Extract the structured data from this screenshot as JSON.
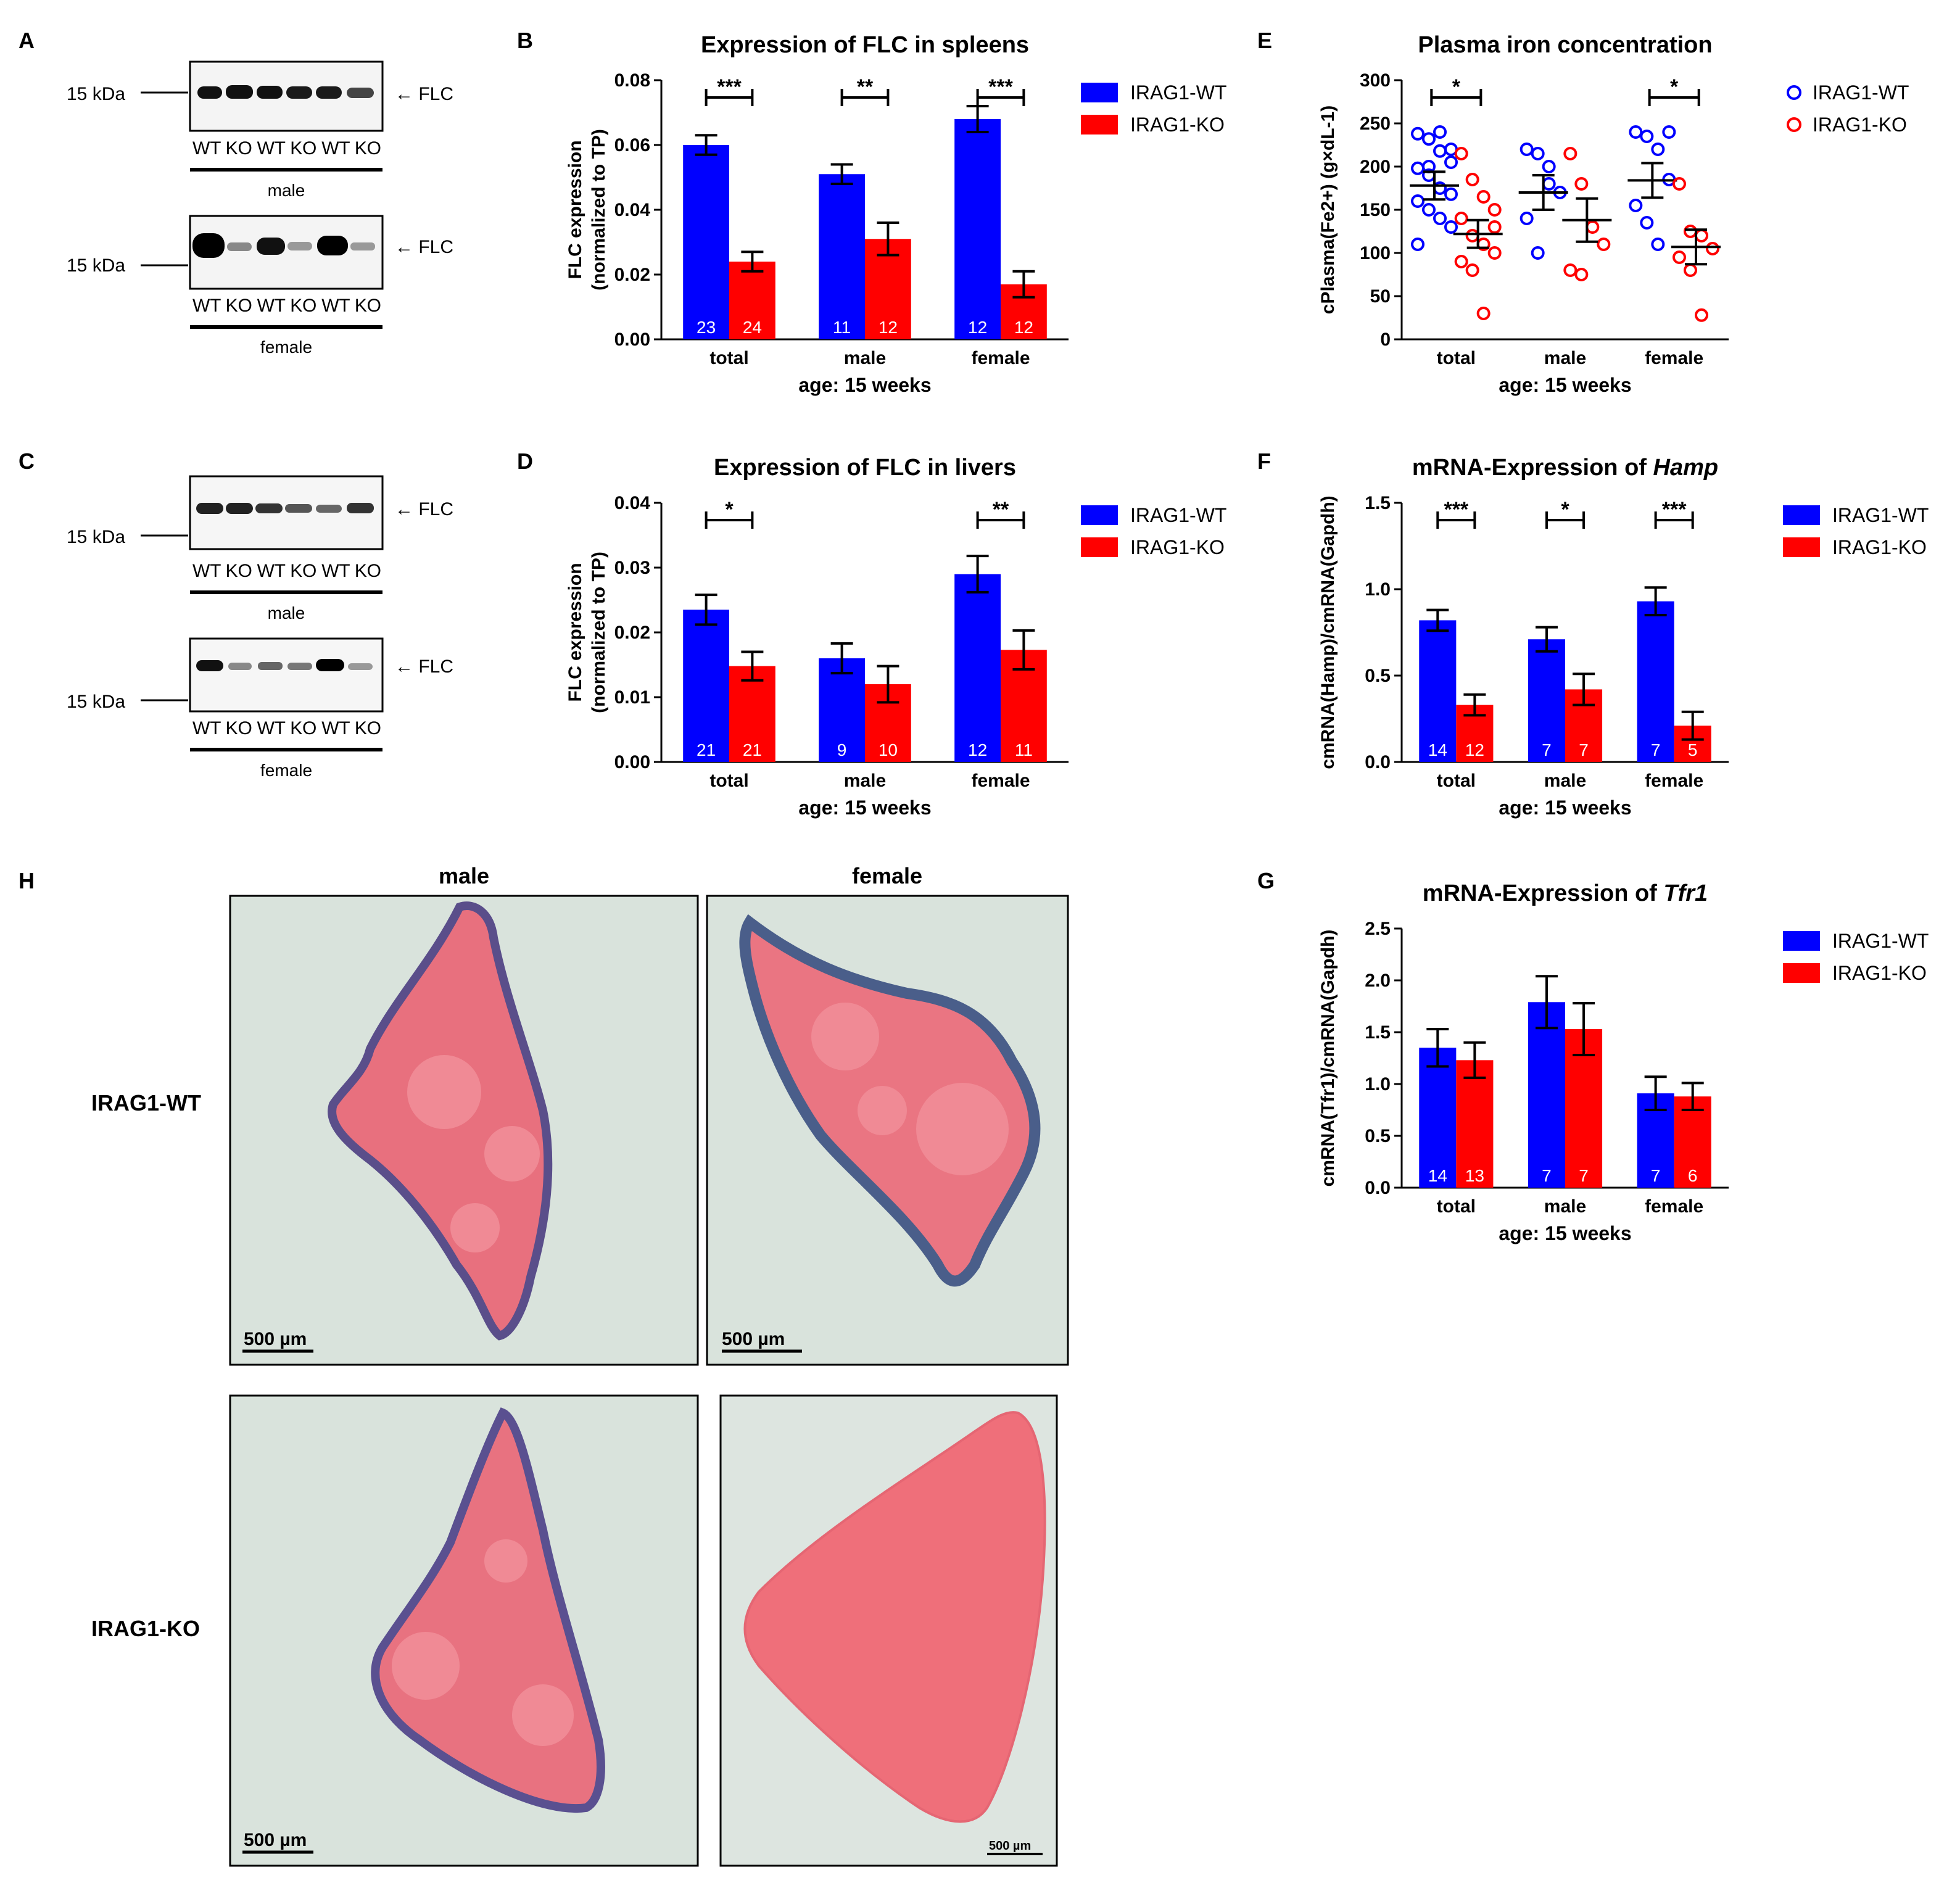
{
  "panel_letters": {
    "A": "A",
    "B": "B",
    "C": "C",
    "D": "D",
    "E": "E",
    "F": "F",
    "G": "G",
    "H": "H"
  },
  "colors": {
    "wt": "#0000ff",
    "ko": "#ff0000"
  },
  "blots": {
    "kda": "15 kDa",
    "band": "FLC",
    "lanes_a_male": "WT KO WT KO WT KO",
    "lanes_a_female": "WT KO WT KO WT KO",
    "lanes_c_male": "WT KO WT KO WT KO",
    "lanes_c_female": "WT KO WT KO WT KO",
    "male": "male",
    "female": "female"
  },
  "legend": {
    "wt": "IRAG1-WT",
    "ko": "IRAG1-KO"
  },
  "histology": {
    "col_male": "male",
    "col_female": "female",
    "row_wt": "IRAG1-WT",
    "row_ko": "IRAG1-KO",
    "scale": "500 µm"
  },
  "chart_data": [
    {
      "id": "B",
      "type": "bar",
      "title": "Expression of FLC in spleens",
      "ylabel_lines": [
        "FLC expression",
        "(normalized to TP)"
      ],
      "xlabel": "age:  15 weeks",
      "categories": [
        "total",
        "male",
        "female"
      ],
      "ylim": [
        0,
        0.08
      ],
      "yticks": [
        "0.00",
        "0.02",
        "0.04",
        "0.06",
        "0.08"
      ],
      "series": [
        {
          "name": "IRAG1-WT",
          "values": [
            0.06,
            0.051,
            0.068
          ],
          "errors": [
            0.003,
            0.003,
            0.004
          ],
          "n": [
            "23",
            "11",
            "12"
          ]
        },
        {
          "name": "IRAG1-KO",
          "values": [
            0.024,
            0.031,
            0.017
          ],
          "errors": [
            0.003,
            0.005,
            0.004
          ],
          "n": [
            "24",
            "12",
            "12"
          ]
        }
      ],
      "significance": [
        "***",
        "**",
        "***"
      ]
    },
    {
      "id": "D",
      "type": "bar",
      "title": "Expression of FLC in livers",
      "ylabel_lines": [
        "FLC expression",
        "(normalized to TP)"
      ],
      "xlabel": "age:  15 weeks",
      "categories": [
        "total",
        "male",
        "female"
      ],
      "ylim": [
        0,
        0.04
      ],
      "yticks": [
        "0.00",
        "0.01",
        "0.02",
        "0.03",
        "0.04"
      ],
      "series": [
        {
          "name": "IRAG1-WT",
          "values": [
            0.0235,
            0.016,
            0.029
          ],
          "errors": [
            0.0023,
            0.0023,
            0.0028
          ],
          "n": [
            "21",
            "9",
            "12"
          ]
        },
        {
          "name": "IRAG1-KO",
          "values": [
            0.0148,
            0.012,
            0.0173
          ],
          "errors": [
            0.0022,
            0.0028,
            0.003
          ],
          "n": [
            "21",
            "10",
            "11"
          ]
        }
      ],
      "significance": [
        "*",
        "",
        "**"
      ]
    },
    {
      "id": "E",
      "type": "scatter",
      "title": "Plasma iron concentration",
      "ylabel": "cPlasma(Fe2+) (g×dL-1)",
      "xlabel": "age:  15 weeks",
      "categories": [
        "total",
        "male",
        "female"
      ],
      "ylim": [
        0,
        300
      ],
      "yticks": [
        "0",
        "50",
        "100",
        "150",
        "200",
        "250",
        "300"
      ],
      "series": [
        {
          "name": "IRAG1-WT",
          "points": [
            [
              238,
              232,
              218,
              205,
              198,
              190,
              175,
              168,
              160,
              150,
              140,
              130,
              110,
              200,
              240,
              220
            ],
            [
              220,
              215,
              180,
              170,
              140,
              100,
              200
            ],
            [
              240,
              235,
              220,
              185,
              155,
              135,
              110,
              240
            ]
          ],
          "means": [
            178,
            170,
            184
          ],
          "errors": [
            16,
            20,
            20
          ]
        },
        {
          "name": "IRAG1-KO",
          "points": [
            [
              215,
              185,
              165,
              150,
              140,
              120,
              110,
              100,
              90,
              80,
              30,
              130
            ],
            [
              215,
              180,
              130,
              110,
              80,
              75
            ],
            [
              180,
              125,
              120,
              105,
              95,
              80,
              28
            ]
          ],
          "means": [
            122,
            138,
            107
          ],
          "errors": [
            16,
            25,
            20
          ]
        }
      ],
      "significance": [
        "*",
        "",
        "*"
      ]
    },
    {
      "id": "F",
      "type": "bar",
      "title": "mRNA-Expression of Hamp",
      "ylabel": "cmRNA(Hamp)/cmRNA(Gapdh)",
      "xlabel": "age:  15 weeks",
      "categories": [
        "total",
        "male",
        "female"
      ],
      "ylim": [
        0,
        1.5
      ],
      "yticks": [
        "0.0",
        "0.5",
        "1.0",
        "1.5"
      ],
      "series": [
        {
          "name": "IRAG1-WT",
          "values": [
            0.82,
            0.71,
            0.93
          ],
          "errors": [
            0.06,
            0.07,
            0.08
          ],
          "n": [
            "14",
            "7",
            "7"
          ]
        },
        {
          "name": "IRAG1-KO",
          "values": [
            0.33,
            0.42,
            0.21
          ],
          "errors": [
            0.06,
            0.09,
            0.08
          ],
          "n": [
            "12",
            "7",
            "5"
          ]
        }
      ],
      "significance": [
        "***",
        "*",
        "***"
      ]
    },
    {
      "id": "G",
      "type": "bar",
      "title": "mRNA-Expression of Tfr1",
      "ylabel": "cmRNA(Tfr1)/cmRNA(Gapdh)",
      "xlabel": "age:  15 weeks",
      "categories": [
        "total",
        "male",
        "female"
      ],
      "ylim": [
        0,
        2.5
      ],
      "yticks": [
        "0.0",
        "0.5",
        "1.0",
        "1.5",
        "2.0",
        "2.5"
      ],
      "series": [
        {
          "name": "IRAG1-WT",
          "values": [
            1.35,
            1.79,
            0.91
          ],
          "errors": [
            0.18,
            0.25,
            0.16
          ],
          "n": [
            "14",
            "7",
            "7"
          ]
        },
        {
          "name": "IRAG1-KO",
          "values": [
            1.23,
            1.53,
            0.88
          ],
          "errors": [
            0.17,
            0.25,
            0.13
          ],
          "n": [
            "13",
            "7",
            "6"
          ]
        }
      ],
      "significance": [
        "",
        "",
        ""
      ]
    }
  ]
}
